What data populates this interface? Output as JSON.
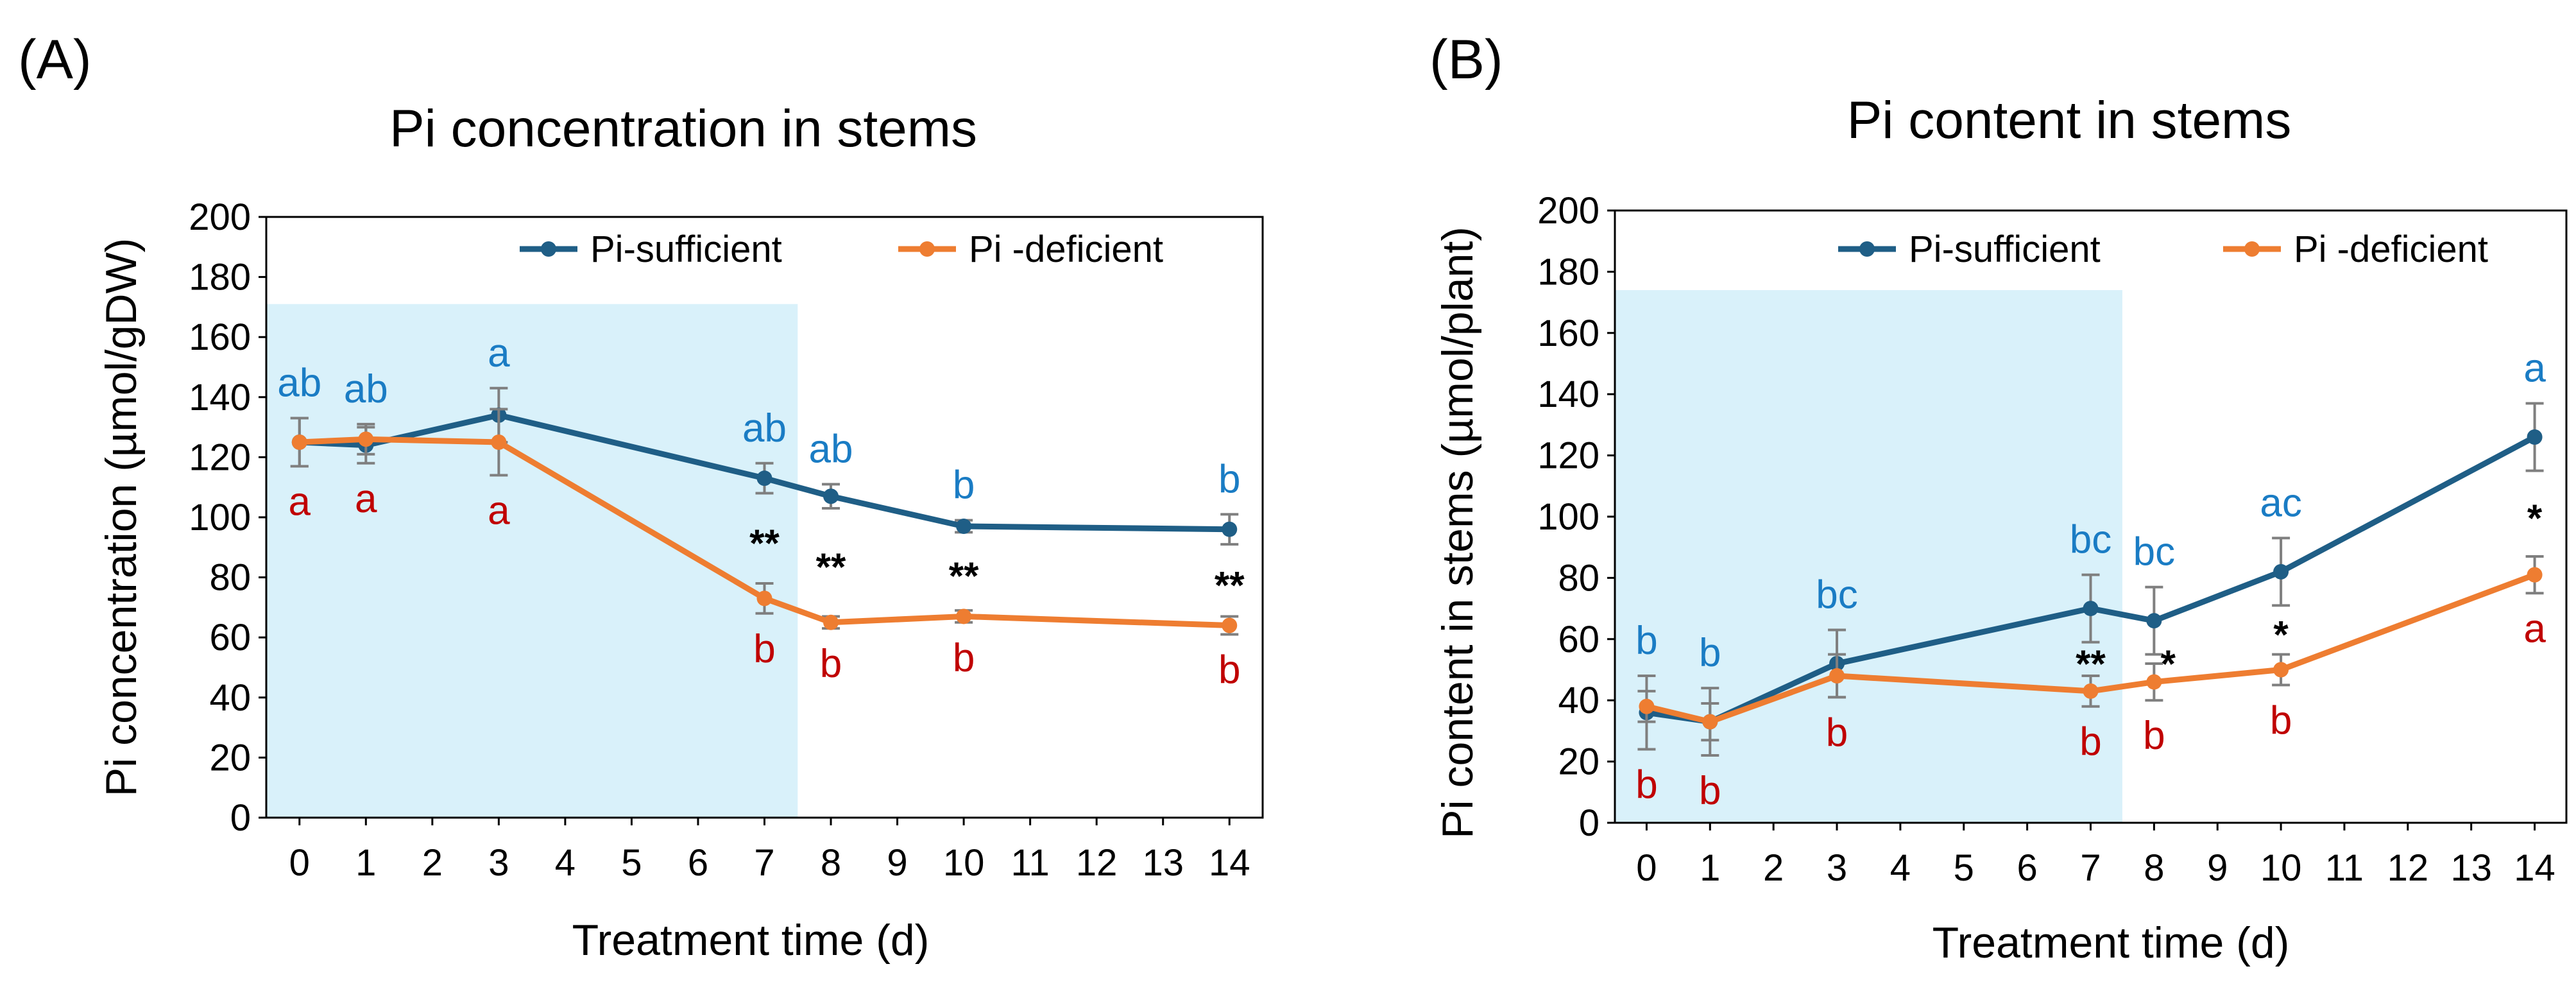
{
  "colors": {
    "sufficient": "#1F5E86",
    "deficient": "#EE7D31",
    "sufficient_letter": "#1A7CC4",
    "deficient_letter": "#C00000",
    "shade": "#D9F1FA",
    "axis": "#000000",
    "errorbar": "#7F7F7F",
    "text": "#000000"
  },
  "chart_data": [
    {
      "type": "line",
      "panel_label": "(A)",
      "title": "Pi concentration in stems",
      "xlabel": "Treatment time (d)",
      "ylabel": "Pi concentration (µmol/gDW)",
      "categories": [
        "0",
        "1",
        "2",
        "3",
        "4",
        "5",
        "6",
        "7",
        "8",
        "9",
        "10",
        "11",
        "12",
        "13",
        "14"
      ],
      "ylim": [
        0,
        200
      ],
      "yticks": [
        "0",
        "20",
        "40",
        "60",
        "80",
        "100",
        "120",
        "140",
        "160",
        "180",
        "200"
      ],
      "grid": false,
      "legend_position": "top",
      "shaded_range": {
        "x_from": -0.5,
        "x_to": 7.5,
        "y_top": 171
      },
      "series": [
        {
          "name": "Pi-sufficient",
          "key": "sufficient",
          "x": [
            0,
            1,
            3,
            7,
            8,
            10,
            14
          ],
          "values": [
            125,
            124,
            134,
            113,
            107,
            97,
            96
          ],
          "errors": [
            8,
            6,
            9,
            5,
            4,
            2,
            5
          ],
          "letters": [
            "ab",
            "ab",
            "a",
            "ab",
            "ab",
            "b",
            "b"
          ]
        },
        {
          "name": "Pi -deficient",
          "key": "deficient",
          "x": [
            0,
            1,
            3,
            7,
            8,
            10,
            14
          ],
          "values": [
            125,
            126,
            125,
            73,
            65,
            67,
            64
          ],
          "errors": [
            8,
            5,
            11,
            5,
            2,
            2,
            3
          ],
          "letters": [
            "a",
            "a",
            "a",
            "b",
            "b",
            "b",
            "b"
          ]
        }
      ],
      "annotations": [
        {
          "x": 7,
          "text": "**"
        },
        {
          "x": 8,
          "text": "**"
        },
        {
          "x": 10,
          "text": "**"
        },
        {
          "x": 14,
          "text": "**"
        }
      ]
    },
    {
      "type": "line",
      "panel_label": "(B)",
      "title": "Pi content in stems",
      "xlabel": "Treatment time (d)",
      "ylabel": "Pi content in stems (µmol/plant)",
      "categories": [
        "0",
        "1",
        "2",
        "3",
        "4",
        "5",
        "6",
        "7",
        "8",
        "9",
        "10",
        "11",
        "12",
        "13",
        "14"
      ],
      "ylim": [
        0,
        200
      ],
      "yticks": [
        "0",
        "20",
        "40",
        "60",
        "80",
        "100",
        "120",
        "140",
        "160",
        "180",
        "200"
      ],
      "grid": false,
      "legend_position": "top-right",
      "shaded_range": {
        "x_from": -0.5,
        "x_to": 7.5,
        "y_top": 174
      },
      "series": [
        {
          "name": "Pi-sufficient",
          "key": "sufficient",
          "x": [
            0,
            1,
            3,
            7,
            8,
            10,
            14
          ],
          "values": [
            36,
            33,
            52,
            70,
            66,
            82,
            126
          ],
          "errors": [
            12,
            11,
            11,
            11,
            11,
            11,
            11
          ],
          "letters": [
            "b",
            "b",
            "bc",
            "bc",
            "bc",
            "ac",
            "a"
          ]
        },
        {
          "name": "Pi -deficient",
          "key": "deficient",
          "x": [
            0,
            1,
            3,
            7,
            8,
            10,
            14
          ],
          "values": [
            38,
            33,
            48,
            43,
            46,
            50,
            81
          ],
          "errors": [
            5,
            6,
            7,
            5,
            6,
            5,
            6
          ],
          "letters": [
            "b",
            "b",
            "b",
            "b",
            "b",
            "b",
            "a"
          ]
        }
      ],
      "annotations": [
        {
          "x": 7,
          "text": "**"
        },
        {
          "x": 8,
          "text": "*"
        },
        {
          "x": 10,
          "text": "*"
        },
        {
          "x": 14,
          "text": "*"
        }
      ]
    }
  ]
}
